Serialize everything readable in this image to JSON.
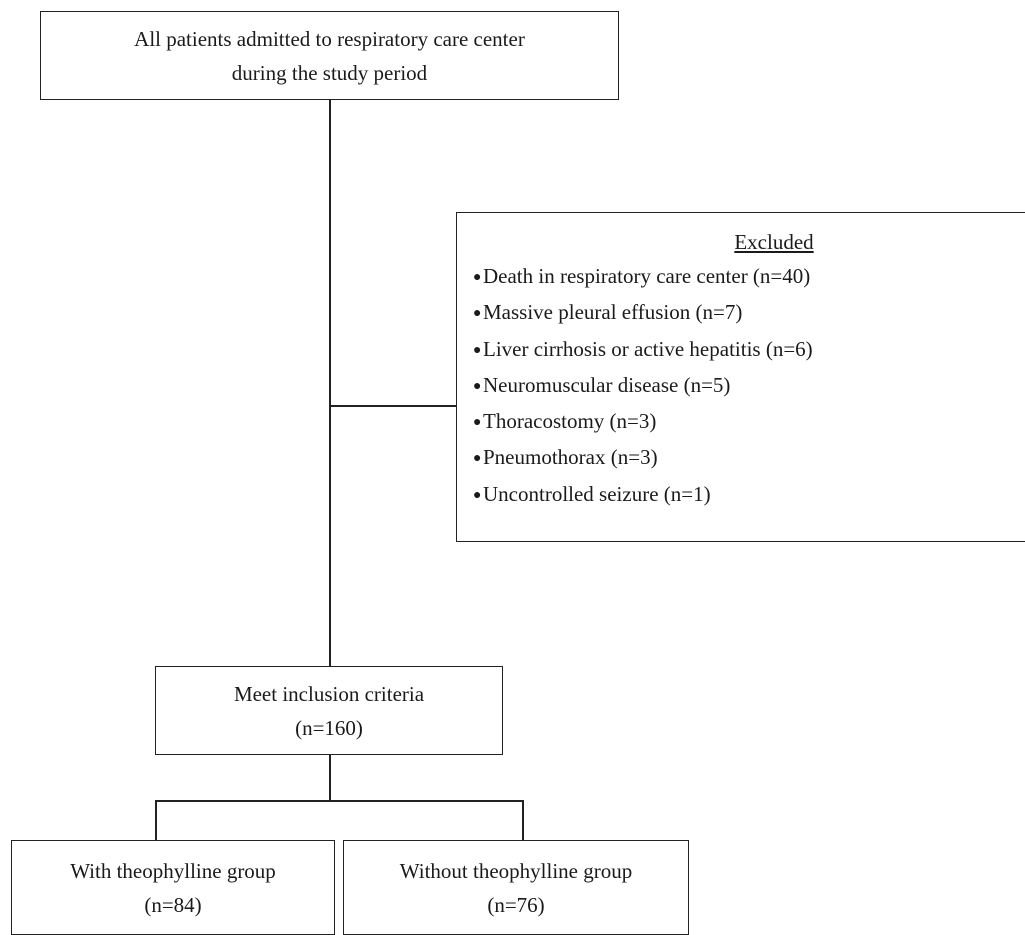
{
  "top_box": {
    "line1": "All patients admitted to respiratory care center",
    "line2": "during the study period"
  },
  "excluded": {
    "title": "Excluded",
    "items": [
      "Death in respiratory care center (n=40)",
      "Massive pleural effusion (n=7)",
      "Liver cirrhosis or active hepatitis (n=6)",
      "Neuromuscular disease (n=5)",
      "Thoracostomy (n=3)",
      "Pneumothorax (n=3)",
      "Uncontrolled seizure (n=1)"
    ]
  },
  "inclusion_box": {
    "line1": "Meet inclusion criteria",
    "line2": "(n=160)"
  },
  "group_with": {
    "line1": "With theophylline group",
    "line2": "(n=84)"
  },
  "group_without": {
    "line1": "Without theophylline group",
    "line2": "(n=76)"
  }
}
